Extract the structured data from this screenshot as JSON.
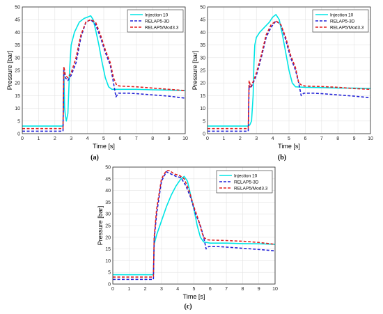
{
  "chart_data": [
    {
      "type": "line",
      "panel_label": "(a)",
      "xlabel": "Time [s]",
      "ylabel": "Pressure [bar]",
      "xlim": [
        0,
        10
      ],
      "ylim": [
        0,
        50
      ],
      "xticks": [
        0,
        1,
        2,
        3,
        4,
        5,
        6,
        7,
        8,
        9,
        10
      ],
      "yticks": [
        0,
        5,
        10,
        15,
        20,
        25,
        30,
        35,
        40,
        45,
        50
      ],
      "grid": true,
      "legend_position": "top-right",
      "series": [
        {
          "name": "Injection 10",
          "color": "#00e5e5",
          "dash": "solid",
          "x": [
            0,
            2.5,
            2.55,
            2.6,
            2.65,
            2.7,
            2.8,
            2.9,
            3.0,
            3.2,
            3.5,
            3.8,
            4.0,
            4.2,
            4.35,
            4.5,
            4.7,
            4.9,
            5.1,
            5.3,
            5.5,
            6.0,
            7.0,
            8.0,
            9.0,
            10.0
          ],
          "y": [
            3.0,
            3.0,
            25.0,
            10.0,
            7.0,
            5.0,
            8.0,
            25.0,
            35.0,
            40.0,
            44.0,
            45.5,
            46.0,
            46.5,
            45.0,
            41.0,
            35.0,
            28.0,
            22.0,
            18.5,
            17.5,
            17.5,
            17.5,
            17.3,
            17.2,
            17.0
          ]
        },
        {
          "name": "RELAP5-3D",
          "color": "#1f1fd6",
          "dash": "dashed",
          "x": [
            0,
            2.5,
            2.55,
            2.65,
            2.8,
            3.0,
            3.3,
            3.6,
            3.9,
            4.2,
            4.5,
            4.8,
            5.1,
            5.4,
            5.6,
            5.75,
            5.9,
            6.5,
            7.0,
            8.0,
            9.0,
            10.0
          ],
          "y": [
            1.0,
            1.0,
            26.0,
            22.0,
            21.0,
            23.0,
            28.0,
            38.0,
            44.0,
            45.0,
            43.0,
            38.0,
            32.0,
            27.0,
            20.0,
            14.5,
            16.0,
            16.0,
            15.8,
            15.3,
            14.8,
            14.0
          ]
        },
        {
          "name": "RELAP5/Mod3.3",
          "color": "#e01f1f",
          "dash": "dashed",
          "x": [
            0,
            2.5,
            2.55,
            2.65,
            2.8,
            3.0,
            3.3,
            3.6,
            3.9,
            4.2,
            4.5,
            4.8,
            5.1,
            5.4,
            5.6,
            5.8,
            6.0,
            7.0,
            8.0,
            9.0,
            10.0
          ],
          "y": [
            2.0,
            2.0,
            26.5,
            23.0,
            22.0,
            24.0,
            30.0,
            39.0,
            44.0,
            45.0,
            44.0,
            39.0,
            33.0,
            28.0,
            22.0,
            19.0,
            18.8,
            18.5,
            18.0,
            17.5,
            17.0
          ]
        }
      ]
    },
    {
      "type": "line",
      "panel_label": "(b)",
      "xlabel": "Time [s]",
      "ylabel": "Pressure [bar]",
      "xlim": [
        0,
        10
      ],
      "ylim": [
        0,
        50
      ],
      "xticks": [
        0,
        1,
        2,
        3,
        4,
        5,
        6,
        7,
        8,
        9,
        10
      ],
      "yticks": [
        0,
        5,
        10,
        15,
        20,
        25,
        30,
        35,
        40,
        45,
        50
      ],
      "grid": true,
      "legend_position": "top-right",
      "series": [
        {
          "name": "Injection 10",
          "color": "#00e5e5",
          "dash": "solid",
          "x": [
            0,
            2.5,
            2.6,
            2.7,
            2.8,
            2.85,
            2.9,
            3.0,
            3.2,
            3.5,
            3.8,
            4.0,
            4.2,
            4.4,
            4.6,
            4.8,
            5.0,
            5.2,
            5.4,
            6.0,
            7.0,
            8.0,
            9.0,
            10.0
          ],
          "y": [
            3.0,
            3.0,
            3.5,
            5.0,
            15.0,
            28.0,
            35.0,
            38.0,
            40.0,
            42.0,
            44.0,
            46.0,
            47.0,
            45.0,
            39.0,
            32.0,
            25.0,
            20.0,
            18.5,
            18.3,
            18.2,
            18.0,
            18.0,
            17.8
          ]
        },
        {
          "name": "RELAP5-3D",
          "color": "#1f1fd6",
          "dash": "dashed",
          "x": [
            0,
            2.5,
            2.55,
            2.65,
            2.8,
            3.0,
            3.3,
            3.6,
            3.9,
            4.2,
            4.5,
            4.8,
            5.1,
            5.4,
            5.6,
            5.75,
            5.9,
            6.5,
            7.0,
            8.0,
            9.0,
            10.0
          ],
          "y": [
            1.0,
            1.0,
            19.0,
            18.0,
            20.0,
            23.0,
            30.0,
            38.0,
            42.0,
            44.5,
            43.0,
            37.0,
            30.0,
            25.0,
            20.0,
            15.0,
            16.0,
            16.0,
            15.8,
            15.3,
            14.8,
            14.2
          ]
        },
        {
          "name": "RELAP5/Mod3.3",
          "color": "#e01f1f",
          "dash": "dashed",
          "x": [
            0,
            2.5,
            2.55,
            2.65,
            2.8,
            3.0,
            3.3,
            3.6,
            3.9,
            4.2,
            4.5,
            4.8,
            5.1,
            5.4,
            5.6,
            5.8,
            6.0,
            7.0,
            8.0,
            9.0,
            10.0
          ],
          "y": [
            2.0,
            2.0,
            21.0,
            18.5,
            20.5,
            24.0,
            31.0,
            39.0,
            43.0,
            44.5,
            43.0,
            38.0,
            31.0,
            26.0,
            20.0,
            19.0,
            18.8,
            18.6,
            18.3,
            17.8,
            17.5
          ]
        }
      ]
    },
    {
      "type": "line",
      "panel_label": "(c)",
      "xlabel": "Time [s]",
      "ylabel": "Pressure [bar]",
      "xlim": [
        0,
        10
      ],
      "ylim": [
        0,
        50
      ],
      "xticks": [
        0,
        1,
        2,
        3,
        4,
        5,
        6,
        7,
        8,
        9,
        10
      ],
      "yticks": [
        0,
        5,
        10,
        15,
        20,
        25,
        30,
        35,
        40,
        45,
        50
      ],
      "grid": true,
      "legend_position": "top-right",
      "series": [
        {
          "name": "Injection 10",
          "color": "#00e5e5",
          "dash": "solid",
          "x": [
            0,
            2.5,
            2.55,
            2.7,
            3.0,
            3.3,
            3.6,
            3.9,
            4.2,
            4.4,
            4.6,
            4.8,
            5.0,
            5.2,
            5.4,
            5.6,
            6.0,
            7.0,
            8.0,
            9.0,
            10.0
          ],
          "y": [
            4.0,
            4.0,
            17.0,
            21.0,
            27.0,
            33.0,
            38.0,
            42.0,
            45.0,
            46.0,
            44.0,
            38.0,
            32.0,
            25.0,
            20.0,
            18.0,
            17.5,
            17.5,
            17.3,
            17.2,
            17.0
          ]
        },
        {
          "name": "RELAP5-3D",
          "color": "#1f1fd6",
          "dash": "dashed",
          "x": [
            0,
            2.5,
            2.55,
            2.7,
            3.0,
            3.3,
            3.6,
            3.9,
            4.2,
            4.5,
            4.8,
            5.1,
            5.4,
            5.6,
            5.75,
            5.9,
            6.5,
            7.0,
            8.0,
            9.0,
            10.0
          ],
          "y": [
            2.0,
            2.0,
            19.0,
            30.0,
            44.0,
            48.0,
            47.0,
            46.0,
            45.5,
            42.0,
            37.0,
            30.0,
            25.0,
            20.0,
            15.0,
            16.0,
            16.0,
            15.8,
            15.3,
            14.8,
            14.2
          ]
        },
        {
          "name": "RELAP5/Mod3.3",
          "color": "#e01f1f",
          "dash": "dashed",
          "x": [
            0,
            2.5,
            2.55,
            2.7,
            3.0,
            3.3,
            3.5,
            3.8,
            4.1,
            4.4,
            4.7,
            5.0,
            5.3,
            5.5,
            5.6,
            5.8,
            6.0,
            7.0,
            8.0,
            9.0,
            10.0
          ],
          "y": [
            3.0,
            3.0,
            20.0,
            32.0,
            45.0,
            48.5,
            48.5,
            47.0,
            46.5,
            45.0,
            40.0,
            33.0,
            27.0,
            22.0,
            20.0,
            19.0,
            18.8,
            18.6,
            18.3,
            17.8,
            17.0
          ]
        }
      ]
    }
  ]
}
